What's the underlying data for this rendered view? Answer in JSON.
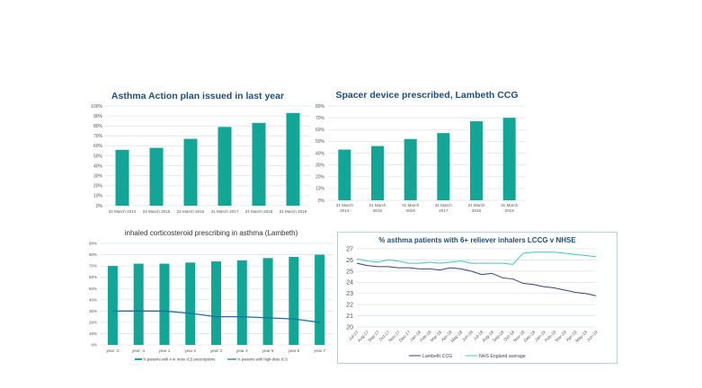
{
  "colors": {
    "teal": "#13a596",
    "teal_light": "#3fc7b6",
    "navy": "#3a3f7a",
    "blue_line": "#1b6fa0",
    "grid": "#dde4ea",
    "title": "#1f4e79",
    "axis_text": "#555555"
  },
  "chart_data": [
    {
      "type": "bar",
      "title": "Asthma Action plan issued in last year",
      "categories": [
        "31 March 2014",
        "31 March 2015",
        "31 March 2016",
        "31 March 2017",
        "31 March 2018",
        "31 March 2019"
      ],
      "values": [
        56,
        58,
        67,
        79,
        83,
        93
      ],
      "ylim": [
        0,
        100
      ],
      "yticks": [
        "0%",
        "10%",
        "20%",
        "30%",
        "40%",
        "50%",
        "60%",
        "70%",
        "80%",
        "90%",
        "100%"
      ],
      "xlabel": "",
      "ylabel": "",
      "grid": true
    },
    {
      "type": "bar",
      "title": "Spacer device prescribed, Lambeth CCG",
      "categories": [
        [
          "31 March",
          "2014"
        ],
        [
          "31 March",
          "2015"
        ],
        [
          "31 March",
          "2016"
        ],
        [
          "31 March",
          "2017"
        ],
        [
          "31 March",
          "2018"
        ],
        [
          "31 March",
          "2019"
        ]
      ],
      "values": [
        43,
        46,
        52,
        57,
        67,
        70
      ],
      "ylim": [
        0,
        80
      ],
      "yticks": [
        "0%",
        "10%",
        "20%",
        "30%",
        "40%",
        "50%",
        "60%",
        "70%",
        "80%"
      ],
      "xlabel": "",
      "ylabel": "",
      "grid": true
    },
    {
      "type": "bar",
      "title": "inhaled corticosteroid prescribing in asthma (Lambeth)",
      "categories": [
        "year -2",
        "year -1",
        "year 1",
        "year 2",
        "year 3",
        "year 4",
        "year 5",
        "year 6",
        "year 7"
      ],
      "series": [
        {
          "name": "% patients with 4 or more ICS prescriptions",
          "kind": "bar",
          "values": [
            70,
            72,
            72,
            73,
            74,
            75,
            77,
            78,
            80
          ]
        },
        {
          "name": "% patients with high-dose ICS",
          "kind": "line",
          "values": [
            30,
            30,
            30,
            28,
            25,
            25,
            24,
            23,
            20
          ]
        }
      ],
      "ylim": [
        0,
        90
      ],
      "yticks": [
        "0%",
        "10%",
        "20%",
        "30%",
        "40%",
        "50%",
        "60%",
        "70%",
        "80%",
        "90%"
      ],
      "legend": "bottom",
      "grid": true
    },
    {
      "type": "line",
      "title": "% asthma patients with 6+ reliever inhalers LCCG v NHSE",
      "categories": [
        "Jul-17",
        "Aug-17",
        "Sep-17",
        "Oct-17",
        "Nov-17",
        "Dec-17",
        "Jan-18",
        "Feb-18",
        "Mar-18",
        "Apr-18",
        "May-18",
        "Jun-18",
        "Jul-18",
        "Aug-18",
        "Sep-18",
        "Oct-18",
        "Nov-18",
        "Dec-18",
        "Jan-19",
        "Feb-19",
        "Mar-19",
        "Apr-19",
        "May-19",
        "Jun-19"
      ],
      "series": [
        {
          "name": "Lambeth CCG",
          "values": [
            25.7,
            25.5,
            25.4,
            25.4,
            25.3,
            25.3,
            25.2,
            25.2,
            25.1,
            25.3,
            25.2,
            25.0,
            24.7,
            24.8,
            24.4,
            24.3,
            23.9,
            23.8,
            23.6,
            23.5,
            23.3,
            23.1,
            23.0,
            22.8
          ]
        },
        {
          "name": "NHS England average",
          "values": [
            26.1,
            25.9,
            25.8,
            26.0,
            25.9,
            25.7,
            25.7,
            25.8,
            25.7,
            25.8,
            25.9,
            25.7,
            25.7,
            25.7,
            25.7,
            25.6,
            26.6,
            26.7,
            26.7,
            26.7,
            26.6,
            26.5,
            26.4,
            26.3
          ]
        }
      ],
      "ylim": [
        20,
        27
      ],
      "yticks": [
        "20",
        "21",
        "22",
        "23",
        "24",
        "25",
        "26",
        "27"
      ],
      "legend": "bottom",
      "grid": true
    }
  ]
}
